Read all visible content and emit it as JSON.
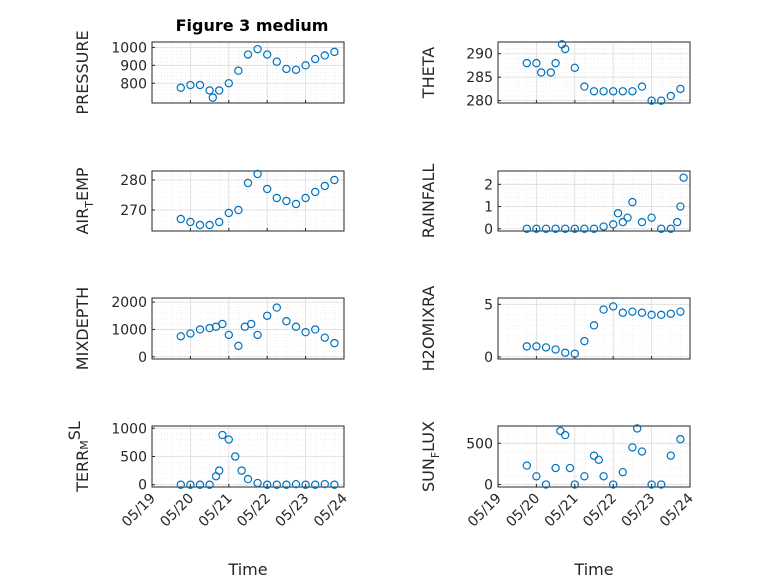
{
  "figure_title": "Figure 3 medium",
  "colors": {
    "marker": "#0072BD",
    "axis": "#262626",
    "grid": "#DCDCDC",
    "minor_grid": "#E6E6E6"
  },
  "chart_data": [
    {
      "type": "scatter",
      "title": "Figure 3 medium",
      "ylabel": "PRESSURE",
      "ylabel_sub": "",
      "xlabel": "",
      "xlim": [
        "2024-05-19",
        "2024-05-24"
      ],
      "ylim": [
        690,
        1030
      ],
      "yticks": [
        800,
        900,
        1000
      ],
      "ytick_labels": [
        "800",
        "900",
        "1000"
      ],
      "grid": true,
      "x": [
        "2024-05-19T18:00",
        "2024-05-20T00:00",
        "2024-05-20T06:00",
        "2024-05-20T12:00",
        "2024-05-20T14:00",
        "2024-05-20T18:00",
        "2024-05-21T00:00",
        "2024-05-21T06:00",
        "2024-05-21T12:00",
        "2024-05-21T18:00",
        "2024-05-22T00:00",
        "2024-05-22T06:00",
        "2024-05-22T12:00",
        "2024-05-22T18:00",
        "2024-05-23T00:00",
        "2024-05-23T06:00",
        "2024-05-23T12:00",
        "2024-05-23T18:00"
      ],
      "values": [
        775,
        790,
        790,
        760,
        720,
        760,
        800,
        870,
        960,
        990,
        960,
        920,
        880,
        875,
        900,
        935,
        955,
        975
      ]
    },
    {
      "type": "scatter",
      "title": "",
      "ylabel": "THETA",
      "ylabel_sub": "",
      "xlabel": "",
      "xlim": [
        "2024-05-19",
        "2024-05-24"
      ],
      "ylim": [
        279.5,
        292.5
      ],
      "yticks": [
        280,
        285,
        290
      ],
      "ytick_labels": [
        "280",
        "285",
        "290"
      ],
      "grid": true,
      "x": [
        "2024-05-19T18:00",
        "2024-05-20T00:00",
        "2024-05-20T03:00",
        "2024-05-20T09:00",
        "2024-05-20T12:00",
        "2024-05-20T16:00",
        "2024-05-20T18:00",
        "2024-05-21T00:00",
        "2024-05-21T06:00",
        "2024-05-21T12:00",
        "2024-05-21T18:00",
        "2024-05-22T00:00",
        "2024-05-22T06:00",
        "2024-05-22T12:00",
        "2024-05-22T18:00",
        "2024-05-23T00:00",
        "2024-05-23T06:00",
        "2024-05-23T12:00",
        "2024-05-23T18:00"
      ],
      "values": [
        288,
        288,
        286,
        286,
        288,
        292,
        291,
        287,
        283,
        282,
        282,
        282,
        282,
        282,
        283,
        280,
        280,
        281,
        282.5
      ]
    },
    {
      "type": "scatter",
      "title": "",
      "ylabel": "AIR",
      "ylabel_sub": "T",
      "ylabel_rest": "EMP",
      "xlabel": "",
      "xlim": [
        "2024-05-19",
        "2024-05-24"
      ],
      "ylim": [
        263,
        283
      ],
      "yticks": [
        270,
        280
      ],
      "ytick_labels": [
        "270",
        "280"
      ],
      "grid": true,
      "x": [
        "2024-05-19T18:00",
        "2024-05-20T00:00",
        "2024-05-20T06:00",
        "2024-05-20T12:00",
        "2024-05-20T18:00",
        "2024-05-21T00:00",
        "2024-05-21T06:00",
        "2024-05-21T12:00",
        "2024-05-21T18:00",
        "2024-05-22T00:00",
        "2024-05-22T06:00",
        "2024-05-22T12:00",
        "2024-05-22T18:00",
        "2024-05-23T00:00",
        "2024-05-23T06:00",
        "2024-05-23T12:00",
        "2024-05-23T18:00"
      ],
      "values": [
        267,
        266,
        265,
        265,
        266,
        269,
        270,
        279,
        282,
        277,
        274,
        273,
        272,
        274,
        276,
        278,
        280
      ]
    },
    {
      "type": "scatter",
      "title": "",
      "ylabel": "RAINFALL",
      "ylabel_sub": "",
      "xlabel": "",
      "xlim": [
        "2024-05-19",
        "2024-05-24"
      ],
      "ylim": [
        -0.1,
        2.6
      ],
      "yticks": [
        0,
        1,
        2
      ],
      "ytick_labels": [
        "0",
        "1",
        "2"
      ],
      "grid": true,
      "x": [
        "2024-05-19T18:00",
        "2024-05-20T00:00",
        "2024-05-20T06:00",
        "2024-05-20T12:00",
        "2024-05-20T18:00",
        "2024-05-21T00:00",
        "2024-05-21T06:00",
        "2024-05-21T12:00",
        "2024-05-21T18:00",
        "2024-05-22T00:00",
        "2024-05-22T03:00",
        "2024-05-22T06:00",
        "2024-05-22T09:00",
        "2024-05-22T12:00",
        "2024-05-22T18:00",
        "2024-05-23T00:00",
        "2024-05-23T06:00",
        "2024-05-23T12:00",
        "2024-05-23T16:00",
        "2024-05-23T18:00",
        "2024-05-23T20:00"
      ],
      "values": [
        0,
        0,
        0,
        0,
        0,
        0,
        0,
        0,
        0.1,
        0.2,
        0.7,
        0.3,
        0.5,
        1.2,
        0.3,
        0.5,
        0,
        0,
        0.3,
        1.0,
        2.3
      ]
    },
    {
      "type": "scatter",
      "title": "",
      "ylabel": "MIXDEPTH",
      "ylabel_sub": "",
      "xlabel": "",
      "xlim": [
        "2024-05-19",
        "2024-05-24"
      ],
      "ylim": [
        -80,
        2150
      ],
      "yticks": [
        0,
        1000,
        2000
      ],
      "ytick_labels": [
        "0",
        "1000",
        "2000"
      ],
      "grid": true,
      "x": [
        "2024-05-19T18:00",
        "2024-05-20T00:00",
        "2024-05-20T06:00",
        "2024-05-20T12:00",
        "2024-05-20T16:00",
        "2024-05-20T20:00",
        "2024-05-21T00:00",
        "2024-05-21T06:00",
        "2024-05-21T10:00",
        "2024-05-21T14:00",
        "2024-05-21T18:00",
        "2024-05-22T00:00",
        "2024-05-22T06:00",
        "2024-05-22T12:00",
        "2024-05-22T18:00",
        "2024-05-23T00:00",
        "2024-05-23T06:00",
        "2024-05-23T12:00",
        "2024-05-23T18:00"
      ],
      "values": [
        750,
        850,
        1000,
        1050,
        1100,
        1200,
        800,
        400,
        1100,
        1200,
        800,
        1500,
        1800,
        1300,
        1100,
        900,
        1000,
        700,
        500
      ]
    },
    {
      "type": "scatter",
      "title": "",
      "ylabel": "H2OMIXRA",
      "ylabel_sub": "",
      "xlabel": "",
      "xlim": [
        "2024-05-19",
        "2024-05-24"
      ],
      "ylim": [
        -0.2,
        5.6
      ],
      "yticks": [
        0,
        5
      ],
      "ytick_labels": [
        "0",
        "5"
      ],
      "grid": true,
      "x": [
        "2024-05-19T18:00",
        "2024-05-20T00:00",
        "2024-05-20T06:00",
        "2024-05-20T12:00",
        "2024-05-20T18:00",
        "2024-05-21T00:00",
        "2024-05-21T06:00",
        "2024-05-21T12:00",
        "2024-05-21T18:00",
        "2024-05-22T00:00",
        "2024-05-22T06:00",
        "2024-05-22T12:00",
        "2024-05-22T18:00",
        "2024-05-23T00:00",
        "2024-05-23T06:00",
        "2024-05-23T12:00",
        "2024-05-23T18:00"
      ],
      "values": [
        1.0,
        1.0,
        0.9,
        0.7,
        0.4,
        0.3,
        1.5,
        3.0,
        4.5,
        4.8,
        4.2,
        4.3,
        4.2,
        4.0,
        4.0,
        4.1,
        4.3
      ]
    },
    {
      "type": "scatter",
      "title": "",
      "ylabel": "TERR",
      "ylabel_sub": "M",
      "ylabel_rest": "SL",
      "ylabel_sup": true,
      "xlabel": "Time",
      "xlim": [
        "2024-05-19",
        "2024-05-24"
      ],
      "ylim": [
        -40,
        1040
      ],
      "yticks": [
        0,
        500,
        1000
      ],
      "ytick_labels": [
        "0",
        "500",
        "1000"
      ],
      "xtick_labels": [
        "05/19",
        "05/20",
        "05/21",
        "05/22",
        "05/23",
        "05/24"
      ],
      "grid": true,
      "x": [
        "2024-05-19T18:00",
        "2024-05-20T00:00",
        "2024-05-20T06:00",
        "2024-05-20T12:00",
        "2024-05-20T16:00",
        "2024-05-20T18:00",
        "2024-05-20T20:00",
        "2024-05-21T00:00",
        "2024-05-21T04:00",
        "2024-05-21T08:00",
        "2024-05-21T12:00",
        "2024-05-21T18:00",
        "2024-05-22T00:00",
        "2024-05-22T06:00",
        "2024-05-22T12:00",
        "2024-05-22T18:00",
        "2024-05-23T00:00",
        "2024-05-23T06:00",
        "2024-05-23T12:00",
        "2024-05-23T18:00"
      ],
      "values": [
        0,
        0,
        0,
        0,
        150,
        250,
        880,
        800,
        500,
        250,
        100,
        30,
        0,
        0,
        0,
        10,
        0,
        0,
        10,
        0
      ]
    },
    {
      "type": "scatter",
      "title": "",
      "ylabel": "SUN",
      "ylabel_sub": "F",
      "ylabel_rest": "LUX",
      "xlabel": "Time",
      "xlim": [
        "2024-05-19",
        "2024-05-24"
      ],
      "ylim": [
        -30,
        710
      ],
      "yticks": [
        0,
        500
      ],
      "ytick_labels": [
        "0",
        "500"
      ],
      "xtick_labels": [
        "05/19",
        "05/20",
        "05/21",
        "05/22",
        "05/23",
        "05/24"
      ],
      "grid": true,
      "x": [
        "2024-05-19T18:00",
        "2024-05-20T00:00",
        "2024-05-20T06:00",
        "2024-05-20T12:00",
        "2024-05-20T15:00",
        "2024-05-20T18:00",
        "2024-05-20T21:00",
        "2024-05-21T00:00",
        "2024-05-21T06:00",
        "2024-05-21T12:00",
        "2024-05-21T15:00",
        "2024-05-21T18:00",
        "2024-05-22T00:00",
        "2024-05-22T06:00",
        "2024-05-22T12:00",
        "2024-05-22T15:00",
        "2024-05-22T18:00",
        "2024-05-23T00:00",
        "2024-05-23T06:00",
        "2024-05-23T12:00",
        "2024-05-23T18:00"
      ],
      "values": [
        230,
        100,
        0,
        200,
        650,
        600,
        200,
        0,
        100,
        350,
        300,
        100,
        0,
        150,
        450,
        680,
        400,
        0,
        0,
        350,
        550
      ]
    }
  ]
}
